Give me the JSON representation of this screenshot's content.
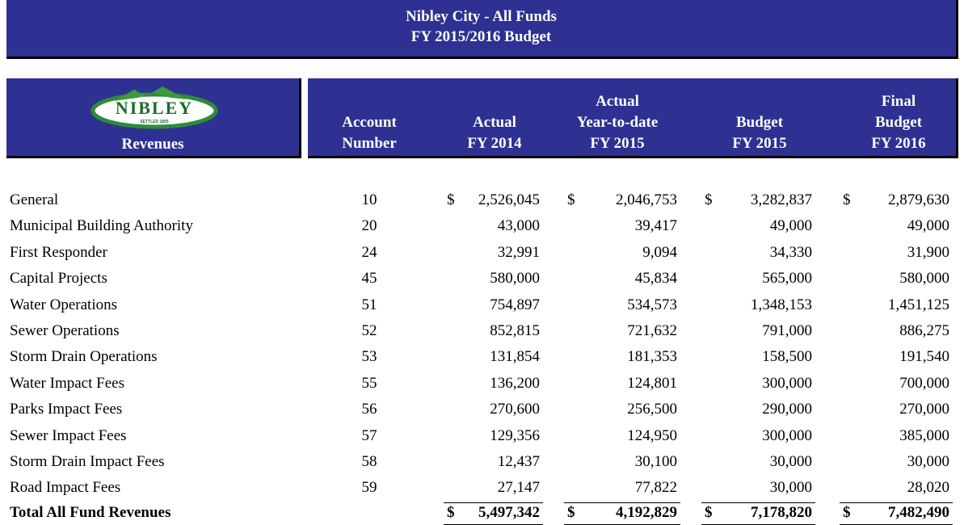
{
  "header": {
    "title_lines": [
      "Nibley City - All Funds",
      "FY 2015/2016 Budget"
    ]
  },
  "logo": {
    "text": "NIBLEY",
    "subtext": "SETTLED 1855"
  },
  "table": {
    "first_header": "Revenues",
    "columns": [
      [
        "Account",
        "Number"
      ],
      [
        "Actual",
        "FY 2014"
      ],
      [
        "Actual",
        "Year-to-date",
        "FY 2015"
      ],
      [
        "Budget",
        "FY 2015"
      ],
      [
        "Final",
        "Budget",
        "FY 2016"
      ]
    ],
    "currency_symbol": "$",
    "rows": [
      [
        "General",
        "10",
        "2,526,045",
        "2,046,753",
        "3,282,837",
        "2,879,630"
      ],
      [
        "Municipal Building Authority",
        "20",
        "43,000",
        "39,417",
        "49,000",
        "49,000"
      ],
      [
        "First Responder",
        "24",
        "32,991",
        "9,094",
        "34,330",
        "31,900"
      ],
      [
        "Capital Projects",
        "45",
        "580,000",
        "45,834",
        "565,000",
        "580,000"
      ],
      [
        "Water Operations",
        "51",
        "754,897",
        "534,573",
        "1,348,153",
        "1,451,125"
      ],
      [
        "Sewer Operations",
        "52",
        "852,815",
        "721,632",
        "791,000",
        "886,275"
      ],
      [
        "Storm Drain Operations",
        "53",
        "131,854",
        "181,353",
        "158,500",
        "191,540"
      ],
      [
        "Water Impact Fees",
        "55",
        "136,200",
        "124,801",
        "300,000",
        "700,000"
      ],
      [
        "Parks Impact Fees",
        "56",
        "270,600",
        "256,500",
        "290,000",
        "270,000"
      ],
      [
        "Sewer Impact Fees",
        "57",
        "129,356",
        "124,950",
        "300,000",
        "385,000"
      ],
      [
        "Storm Drain Impact Fees",
        "58",
        "12,437",
        "30,100",
        "30,000",
        "30,000"
      ],
      [
        "Road Impact Fees",
        "59",
        "27,147",
        "77,822",
        "30,000",
        "28,020"
      ]
    ],
    "total": [
      "Total All Fund Revenues",
      "5,497,342",
      "4,192,829",
      "7,178,820",
      "7,482,490"
    ]
  }
}
